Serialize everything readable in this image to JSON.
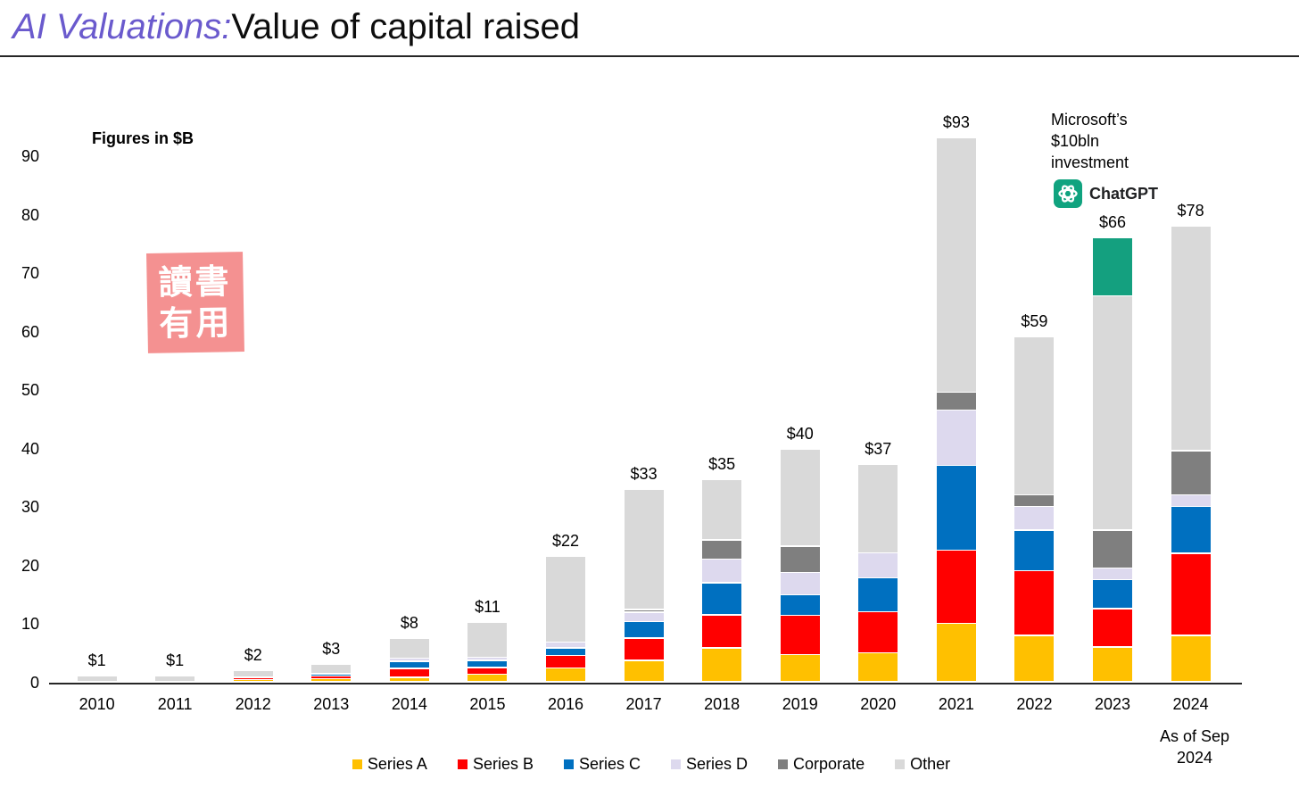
{
  "header": {
    "title_accent": "AI Valuations:",
    "title_rest": "Value of capital raised"
  },
  "chart_data": {
    "type": "bar",
    "subtype": "stacked",
    "units_note": "Figures in $B",
    "categories": [
      "2010",
      "2011",
      "2012",
      "2013",
      "2014",
      "2015",
      "2016",
      "2017",
      "2018",
      "2019",
      "2020",
      "2021",
      "2022",
      "2023",
      "2024"
    ],
    "total_labels": [
      "$1",
      "$1",
      "$2",
      "$3",
      "$8",
      "$11",
      "$22",
      "$33",
      "$35",
      "$40",
      "$37",
      "$93",
      "$59",
      "$66",
      "$78"
    ],
    "series": [
      {
        "name": "Series A",
        "color": "#FFC000",
        "values": [
          0,
          0,
          0.5,
          0.6,
          0.8,
          1.3,
          2.4,
          3.7,
          5.8,
          4.7,
          5.0,
          10.0,
          8.0,
          6.0,
          8.0
        ]
      },
      {
        "name": "Series B",
        "color": "#FF0000",
        "values": [
          0,
          0,
          0.3,
          0.4,
          1.5,
          1.2,
          2.1,
          3.8,
          5.7,
          6.7,
          7.0,
          12.5,
          11.0,
          6.5,
          14.0
        ]
      },
      {
        "name": "Series C",
        "color": "#0070C0",
        "values": [
          0,
          0,
          0,
          0.4,
          1.2,
          1.2,
          1.3,
          2.8,
          5.5,
          3.5,
          5.8,
          14.5,
          7.0,
          5.0,
          8.0
        ]
      },
      {
        "name": "Series D",
        "color": "#DDD9EE",
        "values": [
          0,
          0,
          0,
          0,
          0.6,
          0.5,
          1.0,
          1.6,
          4.0,
          3.8,
          4.3,
          9.5,
          4.0,
          2.0,
          2.0
        ]
      },
      {
        "name": "Corporate",
        "color": "#7F7F7F",
        "values": [
          0,
          0,
          0,
          0,
          0,
          0,
          0,
          0.5,
          3.3,
          4.5,
          0,
          3.0,
          2.0,
          6.5,
          7.5
        ]
      },
      {
        "name": "Other",
        "color": "#D9D9D9",
        "values": [
          1.0,
          1.0,
          1.2,
          1.6,
          3.4,
          6.0,
          14.7,
          20.6,
          10.3,
          16.6,
          15.1,
          43.5,
          27.0,
          40.0,
          38.5
        ]
      }
    ],
    "highlight_segment": {
      "category": "2023",
      "value": 10,
      "color": "#14A07F",
      "meaning": "Microsoft's $10bln investment"
    },
    "ylim": [
      0,
      90
    ],
    "yticks": [
      0,
      10,
      20,
      30,
      40,
      50,
      60,
      70,
      80,
      90
    ],
    "grid": "off",
    "legend_position": "bottom-center"
  },
  "annotations": {
    "microsoft_note_lines": [
      "Microsoft’s",
      "$10bln",
      "investment"
    ],
    "chatgpt_label": "ChatGPT",
    "as_of_lines": [
      "As of Sep",
      "2024"
    ],
    "watermark_lines": [
      "讀書",
      "有用"
    ]
  },
  "colors": {
    "title_accent": "#6A5ACD",
    "axis": "#262626",
    "watermark_bg": "#F49191",
    "chatgpt_logo": "#10A37F"
  }
}
